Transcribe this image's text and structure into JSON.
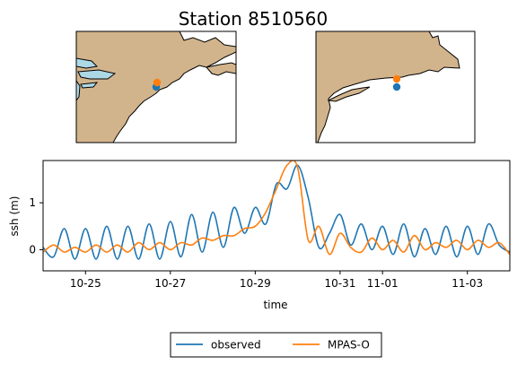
{
  "figure": {
    "title": "Station 8510560",
    "maps": [
      {
        "name": "regional-map",
        "markers": [
          {
            "series": "MPAS-O"
          },
          {
            "series": "observed"
          }
        ]
      },
      {
        "name": "local-map",
        "markers": [
          {
            "series": "MPAS-O"
          },
          {
            "series": "observed"
          }
        ]
      }
    ],
    "colors": {
      "land": "#d2b48c",
      "water": "#add8e6",
      "observed": "#1f77b4",
      "model": "#ff7f0e"
    }
  },
  "chart_data": {
    "type": "line",
    "title": "Station 8510560",
    "xlabel": "time",
    "ylabel": "ssh (m)",
    "xlim": [
      "2012-10-24",
      "2012-11-04"
    ],
    "ylim": [
      -0.45,
      1.9
    ],
    "x_ticks": [
      "10-25",
      "10-27",
      "10-29",
      "10-31",
      "11-01",
      "11-03"
    ],
    "y_ticks": [
      "0",
      "1"
    ],
    "legend": {
      "placement": "bottom-center",
      "entries": [
        "observed",
        "MPAS-O"
      ]
    },
    "grid": false,
    "series": [
      {
        "name": "observed",
        "color": "#1f77b4",
        "x": [
          "2012-10-24",
          "2012-10-24 06:00",
          "2012-10-24 12:00",
          "2012-10-24 18:00",
          "2012-10-25",
          "2012-10-25 06:00",
          "2012-10-25 12:00",
          "2012-10-25 18:00",
          "2012-10-26",
          "2012-10-26 06:00",
          "2012-10-26 12:00",
          "2012-10-26 18:00",
          "2012-10-27",
          "2012-10-27 06:00",
          "2012-10-27 12:00",
          "2012-10-27 18:00",
          "2012-10-28",
          "2012-10-28 06:00",
          "2012-10-28 12:00",
          "2012-10-28 18:00",
          "2012-10-29",
          "2012-10-29 06:00",
          "2012-10-29 12:00",
          "2012-10-29 18:00",
          "2012-10-30",
          "2012-10-30 06:00",
          "2012-10-30 12:00",
          "2012-10-30 18:00",
          "2012-10-31",
          "2012-10-31 06:00",
          "2012-10-31 12:00",
          "2012-10-31 18:00",
          "2012-11-01",
          "2012-11-01 06:00",
          "2012-11-01 12:00",
          "2012-11-01 18:00",
          "2012-11-02",
          "2012-11-02 06:00",
          "2012-11-02 12:00",
          "2012-11-02 18:00",
          "2012-11-03",
          "2012-11-03 06:00",
          "2012-11-03 12:00",
          "2012-11-03 18:00",
          "2012-11-04"
        ],
        "y": [
          0.05,
          -0.15,
          0.45,
          -0.2,
          0.45,
          -0.2,
          0.5,
          -0.2,
          0.5,
          -0.2,
          0.55,
          -0.2,
          0.6,
          -0.15,
          0.75,
          -0.05,
          0.8,
          0.05,
          0.9,
          0.35,
          0.9,
          0.55,
          1.4,
          1.3,
          1.8,
          1.1,
          0.05,
          0.35,
          0.75,
          0.1,
          0.55,
          0.0,
          0.5,
          -0.1,
          0.55,
          -0.15,
          0.45,
          -0.1,
          0.5,
          -0.15,
          0.5,
          -0.1,
          0.55,
          0.1,
          -0.05
        ]
      },
      {
        "name": "MPAS-O",
        "color": "#ff7f0e",
        "x": [
          "2012-10-24",
          "2012-10-24 06:00",
          "2012-10-24 12:00",
          "2012-10-24 18:00",
          "2012-10-25",
          "2012-10-25 06:00",
          "2012-10-25 12:00",
          "2012-10-25 18:00",
          "2012-10-26",
          "2012-10-26 06:00",
          "2012-10-26 12:00",
          "2012-10-26 18:00",
          "2012-10-27",
          "2012-10-27 06:00",
          "2012-10-27 12:00",
          "2012-10-27 18:00",
          "2012-10-28",
          "2012-10-28 06:00",
          "2012-10-28 12:00",
          "2012-10-28 18:00",
          "2012-10-29",
          "2012-10-29 06:00",
          "2012-10-29 12:00",
          "2012-10-29 18:00",
          "2012-10-30",
          "2012-10-30 06:00",
          "2012-10-30 12:00",
          "2012-10-30 18:00",
          "2012-10-31",
          "2012-10-31 06:00",
          "2012-10-31 12:00",
          "2012-10-31 18:00",
          "2012-11-01",
          "2012-11-01 06:00",
          "2012-11-01 12:00",
          "2012-11-01 18:00",
          "2012-11-02",
          "2012-11-02 06:00",
          "2012-11-02 12:00",
          "2012-11-02 18:00",
          "2012-11-03",
          "2012-11-03 06:00",
          "2012-11-03 12:00",
          "2012-11-03 18:00",
          "2012-11-04"
        ],
        "y": [
          -0.05,
          0.1,
          -0.05,
          0.05,
          -0.05,
          0.1,
          -0.05,
          0.1,
          -0.05,
          0.15,
          0.0,
          0.15,
          0.0,
          0.15,
          0.1,
          0.25,
          0.2,
          0.3,
          0.3,
          0.45,
          0.5,
          0.8,
          1.3,
          1.8,
          1.75,
          0.2,
          0.5,
          -0.1,
          0.35,
          0.05,
          -0.05,
          0.25,
          0.0,
          0.2,
          -0.05,
          0.3,
          0.0,
          0.15,
          0.05,
          0.2,
          0.0,
          0.2,
          0.05,
          0.15,
          -0.1
        ]
      }
    ]
  }
}
